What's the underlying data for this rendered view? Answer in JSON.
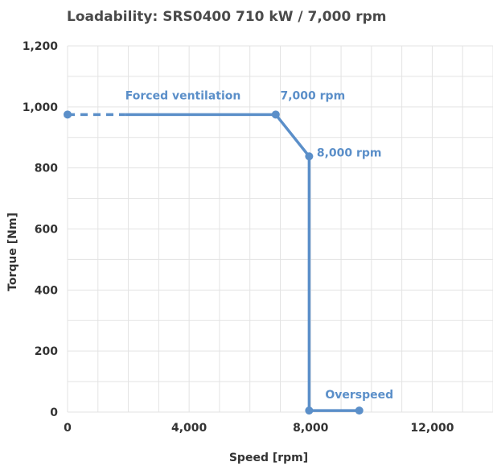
{
  "chart_data": {
    "type": "line",
    "title": "Loadability: SRS0400 710 kW / 7,000 rpm",
    "xlabel": "Speed [rpm]",
    "ylabel": "Torque [Nm]",
    "xlim": [
      0,
      14000
    ],
    "ylim": [
      0,
      1200
    ],
    "grid": true,
    "x_ticks": [
      {
        "value": 0,
        "label": "0"
      },
      {
        "value": 4000,
        "label": "4,000"
      },
      {
        "value": 8000,
        "label": "8,000"
      },
      {
        "value": 12000,
        "label": "12,000"
      }
    ],
    "y_ticks": [
      {
        "value": 0,
        "label": "0"
      },
      {
        "value": 200,
        "label": "200"
      },
      {
        "value": 400,
        "label": "400"
      },
      {
        "value": 600,
        "label": "600"
      },
      {
        "value": 800,
        "label": "800"
      },
      {
        "value": 1000,
        "label": "1,000"
      },
      {
        "value": 1200,
        "label": "1,200"
      }
    ],
    "series": [
      {
        "color": "#5b8fc9",
        "dashed_segment": {
          "x": [
            0,
            1900
          ],
          "y": [
            975,
            975
          ]
        },
        "points": [
          {
            "x": 1900,
            "y": 975
          },
          {
            "x": 6850,
            "y": 975
          },
          {
            "x": 7950,
            "y": 838
          },
          {
            "x": 7950,
            "y": 5
          },
          {
            "x": 9600,
            "y": 5
          }
        ],
        "markers": [
          {
            "x": 0,
            "y": 975
          },
          {
            "x": 6850,
            "y": 975
          },
          {
            "x": 7950,
            "y": 838
          },
          {
            "x": 7950,
            "y": 5
          },
          {
            "x": 9600,
            "y": 5
          }
        ]
      }
    ],
    "annotations": [
      {
        "text": "Forced ventilation",
        "x": 3800,
        "y": 1025,
        "anchor": "middle"
      },
      {
        "text": "7,000 rpm",
        "x": 7000,
        "y": 1025,
        "anchor": "start"
      },
      {
        "text": "8,000 rpm",
        "x": 8200,
        "y": 838,
        "anchor": "start"
      },
      {
        "text": "Overspeed",
        "x": 9600,
        "y": 45,
        "anchor": "middle"
      }
    ]
  }
}
